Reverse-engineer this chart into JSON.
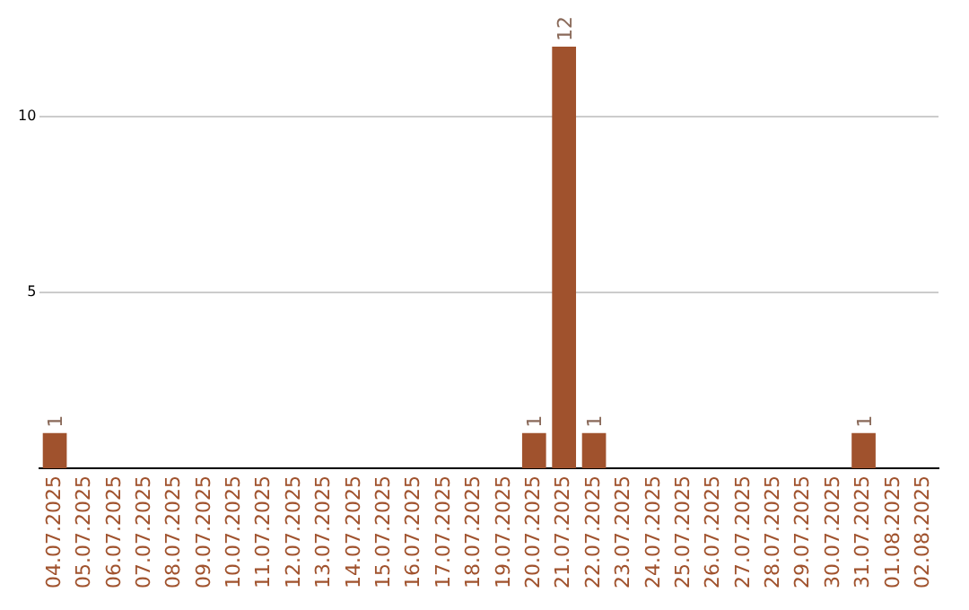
{
  "chart_data": {
    "type": "bar",
    "categories": [
      "04.07.2025",
      "05.07.2025",
      "06.07.2025",
      "07.07.2025",
      "08.07.2025",
      "09.07.2025",
      "10.07.2025",
      "11.07.2025",
      "12.07.2025",
      "13.07.2025",
      "14.07.2025",
      "15.07.2025",
      "16.07.2025",
      "17.07.2025",
      "18.07.2025",
      "19.07.2025",
      "20.07.2025",
      "21.07.2025",
      "22.07.2025",
      "23.07.2025",
      "24.07.2025",
      "25.07.2025",
      "26.07.2025",
      "27.07.2025",
      "28.07.2025",
      "29.07.2025",
      "30.07.2025",
      "31.07.2025",
      "01.08.2025",
      "02.08.2025"
    ],
    "values": [
      1,
      0,
      0,
      0,
      0,
      0,
      0,
      0,
      0,
      0,
      0,
      0,
      0,
      0,
      0,
      0,
      1,
      12,
      1,
      0,
      0,
      0,
      0,
      0,
      0,
      0,
      0,
      1,
      0,
      0
    ],
    "value_labels": [
      "1",
      null,
      null,
      null,
      null,
      null,
      null,
      null,
      null,
      null,
      null,
      null,
      null,
      null,
      null,
      null,
      "1",
      "12",
      "1",
      null,
      null,
      null,
      null,
      null,
      null,
      null,
      null,
      "1",
      null,
      null
    ],
    "color": "#a0522d",
    "ylim": [
      0,
      12
    ],
    "yticks": [
      5,
      10
    ],
    "grid": "y"
  }
}
